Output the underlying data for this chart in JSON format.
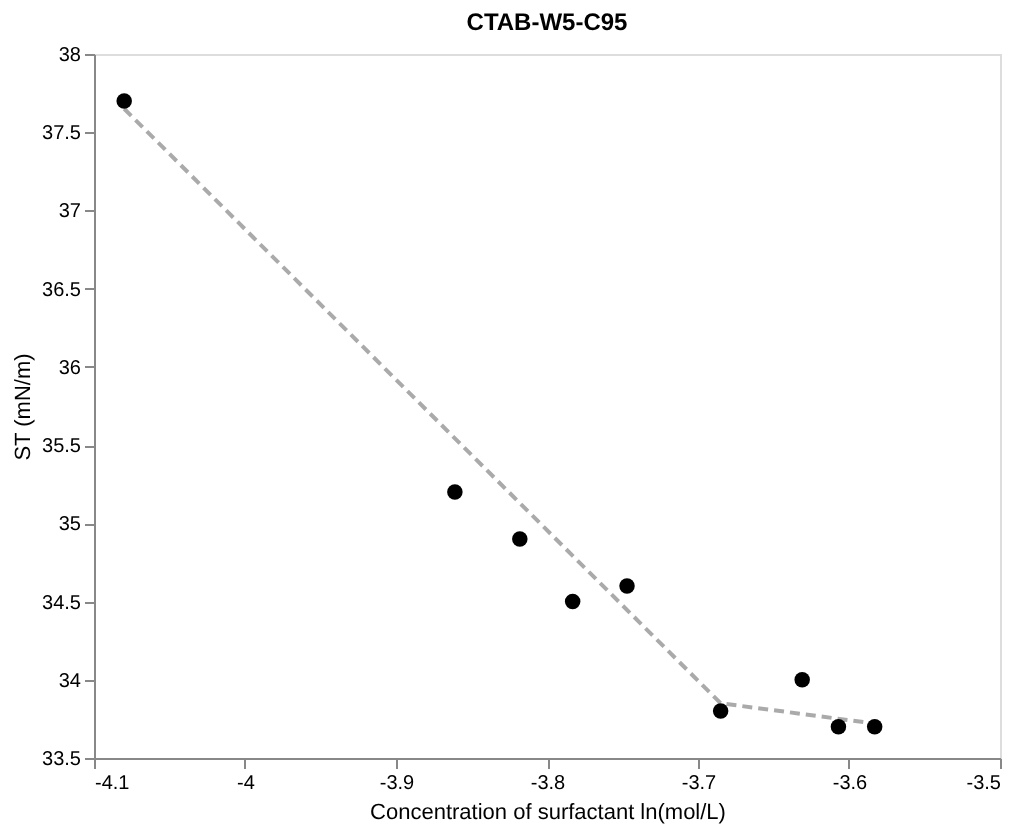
{
  "chart_data": {
    "type": "scatter",
    "title": "CTAB-W5-C95",
    "xlabel": "Concentration of surfactant ln(mol/L)",
    "ylabel": "ST (mN/m)",
    "xlim": [
      -4.1,
      -3.5
    ],
    "xticks": [
      -4.1,
      -4,
      -3.9,
      -3.8,
      -3.7,
      -3.6,
      -3.5
    ],
    "ylim": [
      33.5,
      38
    ],
    "yticks": [
      33.5,
      34,
      34.5,
      35,
      35.5,
      36,
      36.5,
      37,
      37.5,
      38
    ],
    "grid": false,
    "series": [
      {
        "type": "line",
        "color": "#aaaaaa",
        "line_style": "dashed",
        "marker": "none",
        "x": [
          -4.08,
          -3.685,
          -3.583
        ],
        "values": [
          37.65,
          33.85,
          33.72
        ]
      },
      {
        "color": "#000000",
        "marker": "circle",
        "x": [
          -4.08,
          -3.861,
          -3.818,
          -3.783,
          -3.747,
          -3.685,
          -3.631,
          -3.607,
          -3.583
        ],
        "values": [
          37.7,
          35.2,
          34.9,
          34.5,
          34.6,
          33.8,
          34.0,
          33.7,
          33.7
        ]
      }
    ]
  }
}
